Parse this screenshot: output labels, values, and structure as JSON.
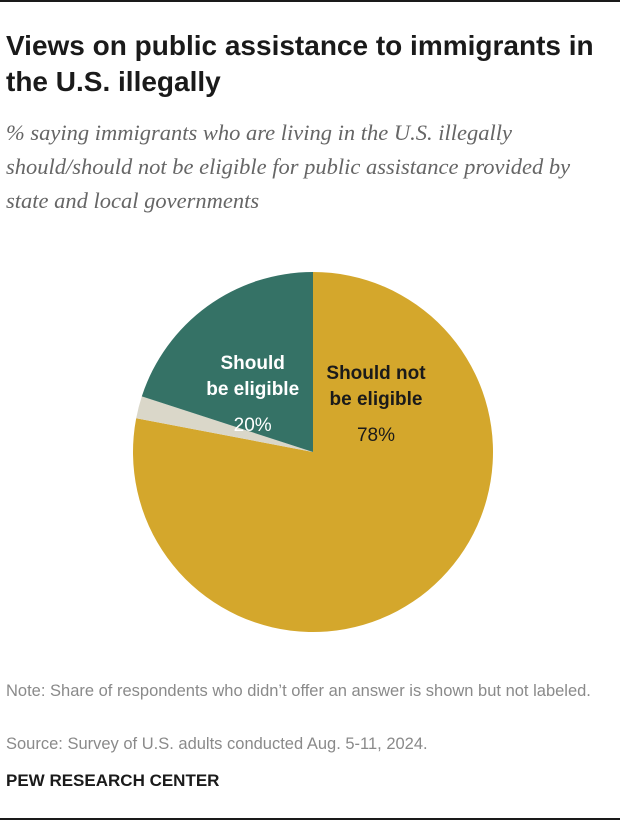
{
  "header": {
    "title": "Views on public assistance to immigrants in the U.S. illegally",
    "subtitle": "% saying immigrants who are living in the U.S. illegally should/should not be eligible for public assistance provided by state and local governments"
  },
  "chart_data": {
    "type": "pie",
    "title": "Views on public assistance to immigrants in the U.S. illegally",
    "start": "top, clockwise",
    "slices": [
      {
        "name": "Should not be eligible",
        "label_lines": [
          "Should not",
          "be eligible"
        ],
        "value": 78,
        "value_label": "78%",
        "color": "#D4A72C",
        "label_color": "#1a1a1a"
      },
      {
        "name": "No answer",
        "label_lines": [],
        "value": 2,
        "value_label": "",
        "color": "#DAD7C9",
        "label_color": "#1a1a1a"
      },
      {
        "name": "Should be eligible",
        "label_lines": [
          "Should",
          "be eligible"
        ],
        "value": 20,
        "value_label": "20%",
        "color": "#357266",
        "label_color": "#ffffff"
      }
    ]
  },
  "footer": {
    "note": "Note: Share of respondents who didn’t offer an answer is shown but not labeled.",
    "source": "Source: Survey of U.S. adults conducted Aug. 5-11, 2024.",
    "brand": "PEW RESEARCH CENTER"
  }
}
